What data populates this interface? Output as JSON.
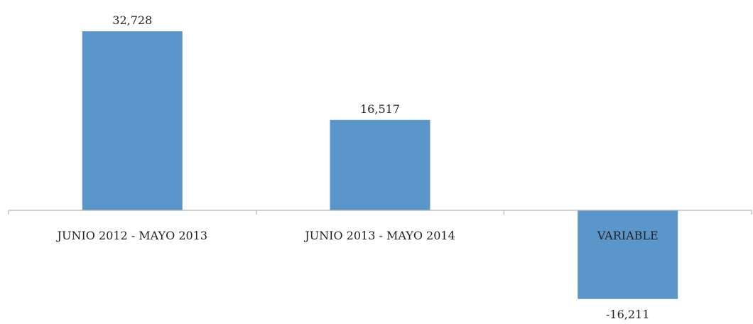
{
  "chart_data": {
    "type": "bar",
    "categories": [
      "JUNIO 2012 - MAYO 2013",
      "JUNIO 2013 - MAYO 2014",
      "VARIABLE"
    ],
    "values": [
      32728,
      16517,
      -16211
    ],
    "value_labels": [
      "32,728",
      "16,517",
      "-16,211"
    ],
    "title": "",
    "xlabel": "",
    "ylabel": "",
    "ylim": [
      -17000,
      34000
    ],
    "grid": false,
    "legend": "none",
    "bar_color": "#5B96CB",
    "axis_color": "#b5b5b5"
  }
}
